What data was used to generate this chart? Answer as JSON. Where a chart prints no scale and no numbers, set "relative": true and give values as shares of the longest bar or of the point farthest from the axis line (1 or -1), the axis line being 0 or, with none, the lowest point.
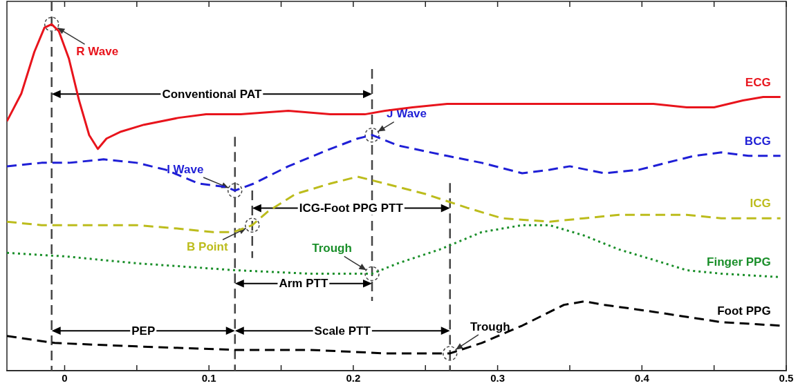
{
  "chart_data": {
    "type": "line",
    "relative": true,
    "xlim": [
      -0.04,
      0.5
    ],
    "xticks": [
      0,
      {
        "value": 0.05,
        "label": null
      },
      0.1,
      {
        "value": 0.15,
        "label": null
      },
      0.2,
      {
        "value": 0.25,
        "label": null
      },
      0.3,
      {
        "value": 0.35,
        "label": null
      },
      0.4,
      {
        "value": 0.45,
        "label": null
      },
      0.5
    ],
    "grid": false,
    "legend": false,
    "series": [
      {
        "name": "ECG",
        "color": "#e8141c",
        "line_style": "solid",
        "x": [
          -0.04,
          -0.03,
          -0.021,
          -0.014,
          -0.009,
          -0.004,
          0.003,
          0.01,
          0.017,
          0.023,
          0.029,
          0.039,
          0.055,
          0.079,
          0.098,
          0.122,
          0.155,
          0.184,
          0.208,
          0.222,
          0.241,
          0.265,
          0.288,
          0.336,
          0.384,
          0.408,
          0.431,
          0.45,
          0.47,
          0.484,
          0.496
        ],
        "values": [
          0.72,
          0.8,
          0.92,
          0.99,
          1,
          0.98,
          0.9,
          0.78,
          0.68,
          0.64,
          0.67,
          0.69,
          0.71,
          0.73,
          0.74,
          0.74,
          0.75,
          0.74,
          0.74,
          0.75,
          0.76,
          0.77,
          0.77,
          0.77,
          0.77,
          0.77,
          0.76,
          0.76,
          0.78,
          0.79,
          0.79
        ]
      },
      {
        "name": "BCG",
        "color": "#1f1fd6",
        "line_style": "dashed",
        "x": [
          -0.04,
          -0.016,
          0.003,
          0.027,
          0.05,
          0.07,
          0.093,
          0.112,
          0.118,
          0.131,
          0.155,
          0.184,
          0.203,
          0.213,
          0.231,
          0.265,
          0.289,
          0.317,
          0.336,
          0.35,
          0.374,
          0.398,
          0.417,
          0.436,
          0.455,
          0.474,
          0.496
        ],
        "values": [
          0.59,
          0.6,
          0.6,
          0.61,
          0.6,
          0.58,
          0.54,
          0.53,
          0.52,
          0.54,
          0.59,
          0.64,
          0.67,
          0.68,
          0.65,
          0.62,
          0.6,
          0.57,
          0.58,
          0.59,
          0.57,
          0.58,
          0.6,
          0.62,
          0.63,
          0.62,
          0.62
        ]
      },
      {
        "name": "ICG",
        "color": "#bcbc1c",
        "line_style": "dashed",
        "x": [
          -0.04,
          -0.016,
          0.003,
          0.027,
          0.05,
          0.079,
          0.103,
          0.117,
          0.13,
          0.141,
          0.16,
          0.184,
          0.203,
          0.222,
          0.25,
          0.279,
          0.303,
          0.336,
          0.36,
          0.384,
          0.408,
          0.431,
          0.455,
          0.496
        ],
        "values": [
          0.43,
          0.42,
          0.42,
          0.42,
          0.42,
          0.41,
          0.4,
          0.4,
          0.42,
          0.46,
          0.51,
          0.54,
          0.56,
          0.54,
          0.51,
          0.47,
          0.44,
          0.43,
          0.44,
          0.45,
          0.45,
          0.45,
          0.44,
          0.44
        ]
      },
      {
        "name": "Finger PPG",
        "color": "#1a8f2a",
        "line_style": "dotted",
        "x": [
          -0.04,
          0,
          0.05,
          0.118,
          0.17,
          0.213,
          0.231,
          0.26,
          0.289,
          0.317,
          0.336,
          0.36,
          0.384,
          0.408,
          0.431,
          0.455,
          0.496
        ],
        "values": [
          0.34,
          0.33,
          0.31,
          0.29,
          0.28,
          0.28,
          0.31,
          0.35,
          0.4,
          0.42,
          0.42,
          0.39,
          0.35,
          0.32,
          0.29,
          0.28,
          0.27
        ]
      },
      {
        "name": "Foot PPG",
        "color": "#000000",
        "line_style": "dashed",
        "x": [
          -0.04,
          -0.007,
          0.05,
          0.118,
          0.17,
          0.222,
          0.267,
          0.289,
          0.317,
          0.346,
          0.36,
          0.374,
          0.408,
          0.455,
          0.496
        ],
        "values": [
          0.1,
          0.08,
          0.07,
          0.06,
          0.06,
          0.05,
          0.05,
          0.08,
          0.13,
          0.19,
          0.2,
          0.19,
          0.17,
          0.14,
          0.13
        ]
      }
    ],
    "ref_lines": [
      {
        "axis": "x",
        "value": -0.009,
        "color": "#444444",
        "line_style": "dashed"
      },
      {
        "axis": "x",
        "value": 0.118,
        "color": "#444444",
        "line_style": "dashed"
      },
      {
        "axis": "x",
        "value": 0.13,
        "color": "#444444",
        "line_style": "dashed"
      },
      {
        "axis": "x",
        "value": 0.213,
        "color": "#444444",
        "line_style": "dashed"
      },
      {
        "axis": "x",
        "value": 0.267,
        "color": "#444444",
        "line_style": "dashed"
      }
    ],
    "annotations": [
      "Conventional PAT",
      "ICG-Foot PPG PTT",
      "Arm PTT",
      "PEP",
      "Scale PTT",
      {
        "text": "R Wave",
        "x": -0.009,
        "y": 1
      },
      {
        "text": "J Wave",
        "x": 0.213,
        "y": 0.68
      },
      {
        "text": "I Wave",
        "x": 0.118,
        "y": 0.52
      },
      {
        "text": "B Point",
        "x": 0.13,
        "y": 0.42
      },
      {
        "text": "Trough",
        "x": 0.213,
        "y": 0.28
      },
      {
        "text": "Trough",
        "x": 0.267,
        "y": 0.05
      }
    ]
  }
}
